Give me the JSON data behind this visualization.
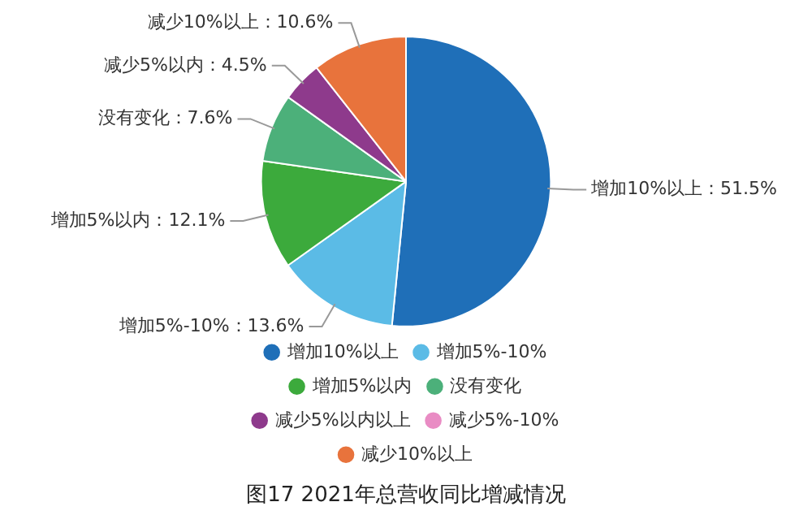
{
  "chart_data": {
    "type": "pie",
    "title": "图17 2021年总营收同比增减情况",
    "categories": [
      "增加10%以上",
      "增加5%-10%",
      "增加5%以内",
      "没有变化",
      "减少5%以内以上",
      "减少5%-10%",
      "减少10%以上"
    ],
    "values": [
      51.5,
      13.6,
      12.1,
      7.6,
      4.5,
      0,
      10.6
    ],
    "value_labels": [
      "增加10%以上：51.5%",
      "增加5%-10%：13.6%",
      "增加5%以内：12.1%",
      "没有变化：7.6%",
      "减少5%以内：4.5%",
      null,
      "减少10%以上：10.6%"
    ],
    "colors": [
      "#1f6fb8",
      "#5bbbe6",
      "#3caa3c",
      "#4cb07a",
      "#8e3a8c",
      "#e98cc4",
      "#e8733c"
    ],
    "legend": "bottom"
  }
}
